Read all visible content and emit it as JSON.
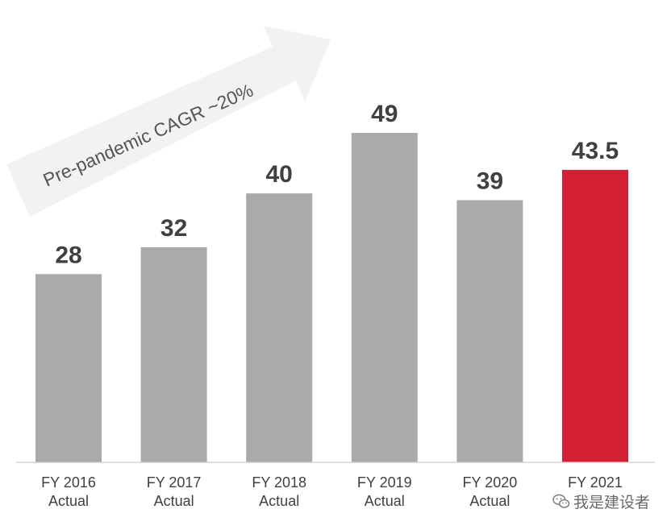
{
  "chart_data": {
    "type": "bar",
    "categories": [
      [
        "FY 2016",
        "Actual"
      ],
      [
        "FY 2017",
        "Actual"
      ],
      [
        "FY 2018",
        "Actual"
      ],
      [
        "FY 2019",
        "Actual"
      ],
      [
        "FY 2020",
        "Actual"
      ],
      [
        "FY 2021",
        ""
      ]
    ],
    "values": [
      28,
      32,
      40,
      49,
      39,
      43.5
    ],
    "value_labels": [
      "28",
      "32",
      "40",
      "49",
      "39",
      "43.5"
    ],
    "ylim": [
      0,
      49
    ],
    "grid": false,
    "bar_colors": [
      "#aaaaaa",
      "#aaaaaa",
      "#aaaaaa",
      "#aaaaaa",
      "#aaaaaa",
      "#d21f33"
    ],
    "annotation": "Pre-pandemic CAGR ~20%"
  },
  "colors": {
    "bar_default": "#aaaaaa",
    "bar_highlight": "#d21f33",
    "arrow": "#f2f2f2",
    "baseline": "#cccccc",
    "label_text": "#404040"
  },
  "watermark": {
    "text": "我是建设者",
    "icon": "wechat-icon"
  }
}
